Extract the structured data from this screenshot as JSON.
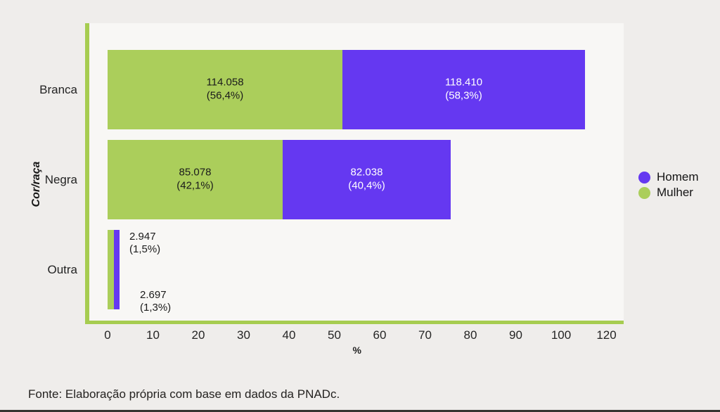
{
  "page": {
    "background": "#efedeb",
    "plot_background": "#f8f7f5",
    "axis_line_color": "#a6cc50",
    "source_note": "Fonte: Elaboração própria com base em dados da PNADc."
  },
  "chart_data": {
    "type": "bar",
    "orientation": "horizontal",
    "stacked": true,
    "ylabel": "Cor/raça",
    "xlabel": "%",
    "categories": [
      "Branca",
      "Negra",
      "Outra"
    ],
    "series": [
      {
        "name": "Mulher",
        "color": "#abce5b",
        "text_color": "#1b1b1b",
        "values": [
          114058,
          85078,
          2947
        ],
        "percents": [
          56.4,
          42.1,
          1.5
        ],
        "value_labels": [
          "114.058",
          "85.078",
          "2.947"
        ],
        "pct_labels": [
          "(56,4%)",
          "(42,1%)",
          "(1,5%)"
        ]
      },
      {
        "name": "Homem",
        "color": "#6538f1",
        "text_color": "#ffffff",
        "values": [
          118410,
          82038,
          2697
        ],
        "percents": [
          58.3,
          40.4,
          1.3
        ],
        "value_labels": [
          "118.410",
          "82.038",
          "2.697"
        ],
        "pct_labels": [
          "(58,3%)",
          "(40,4%)",
          "(1,3%)"
        ]
      }
    ],
    "x_ticks": [
      "0",
      "10",
      "20",
      "30",
      "40",
      "50",
      "60",
      "70",
      "80",
      "90",
      "100",
      "120"
    ],
    "x_axis_range_note": "ticks evenly spaced, grid off",
    "legend_position": "right",
    "legend": [
      {
        "label": "Homem",
        "color": "#6538f1"
      },
      {
        "label": "Mulher",
        "color": "#abce5b"
      }
    ]
  }
}
